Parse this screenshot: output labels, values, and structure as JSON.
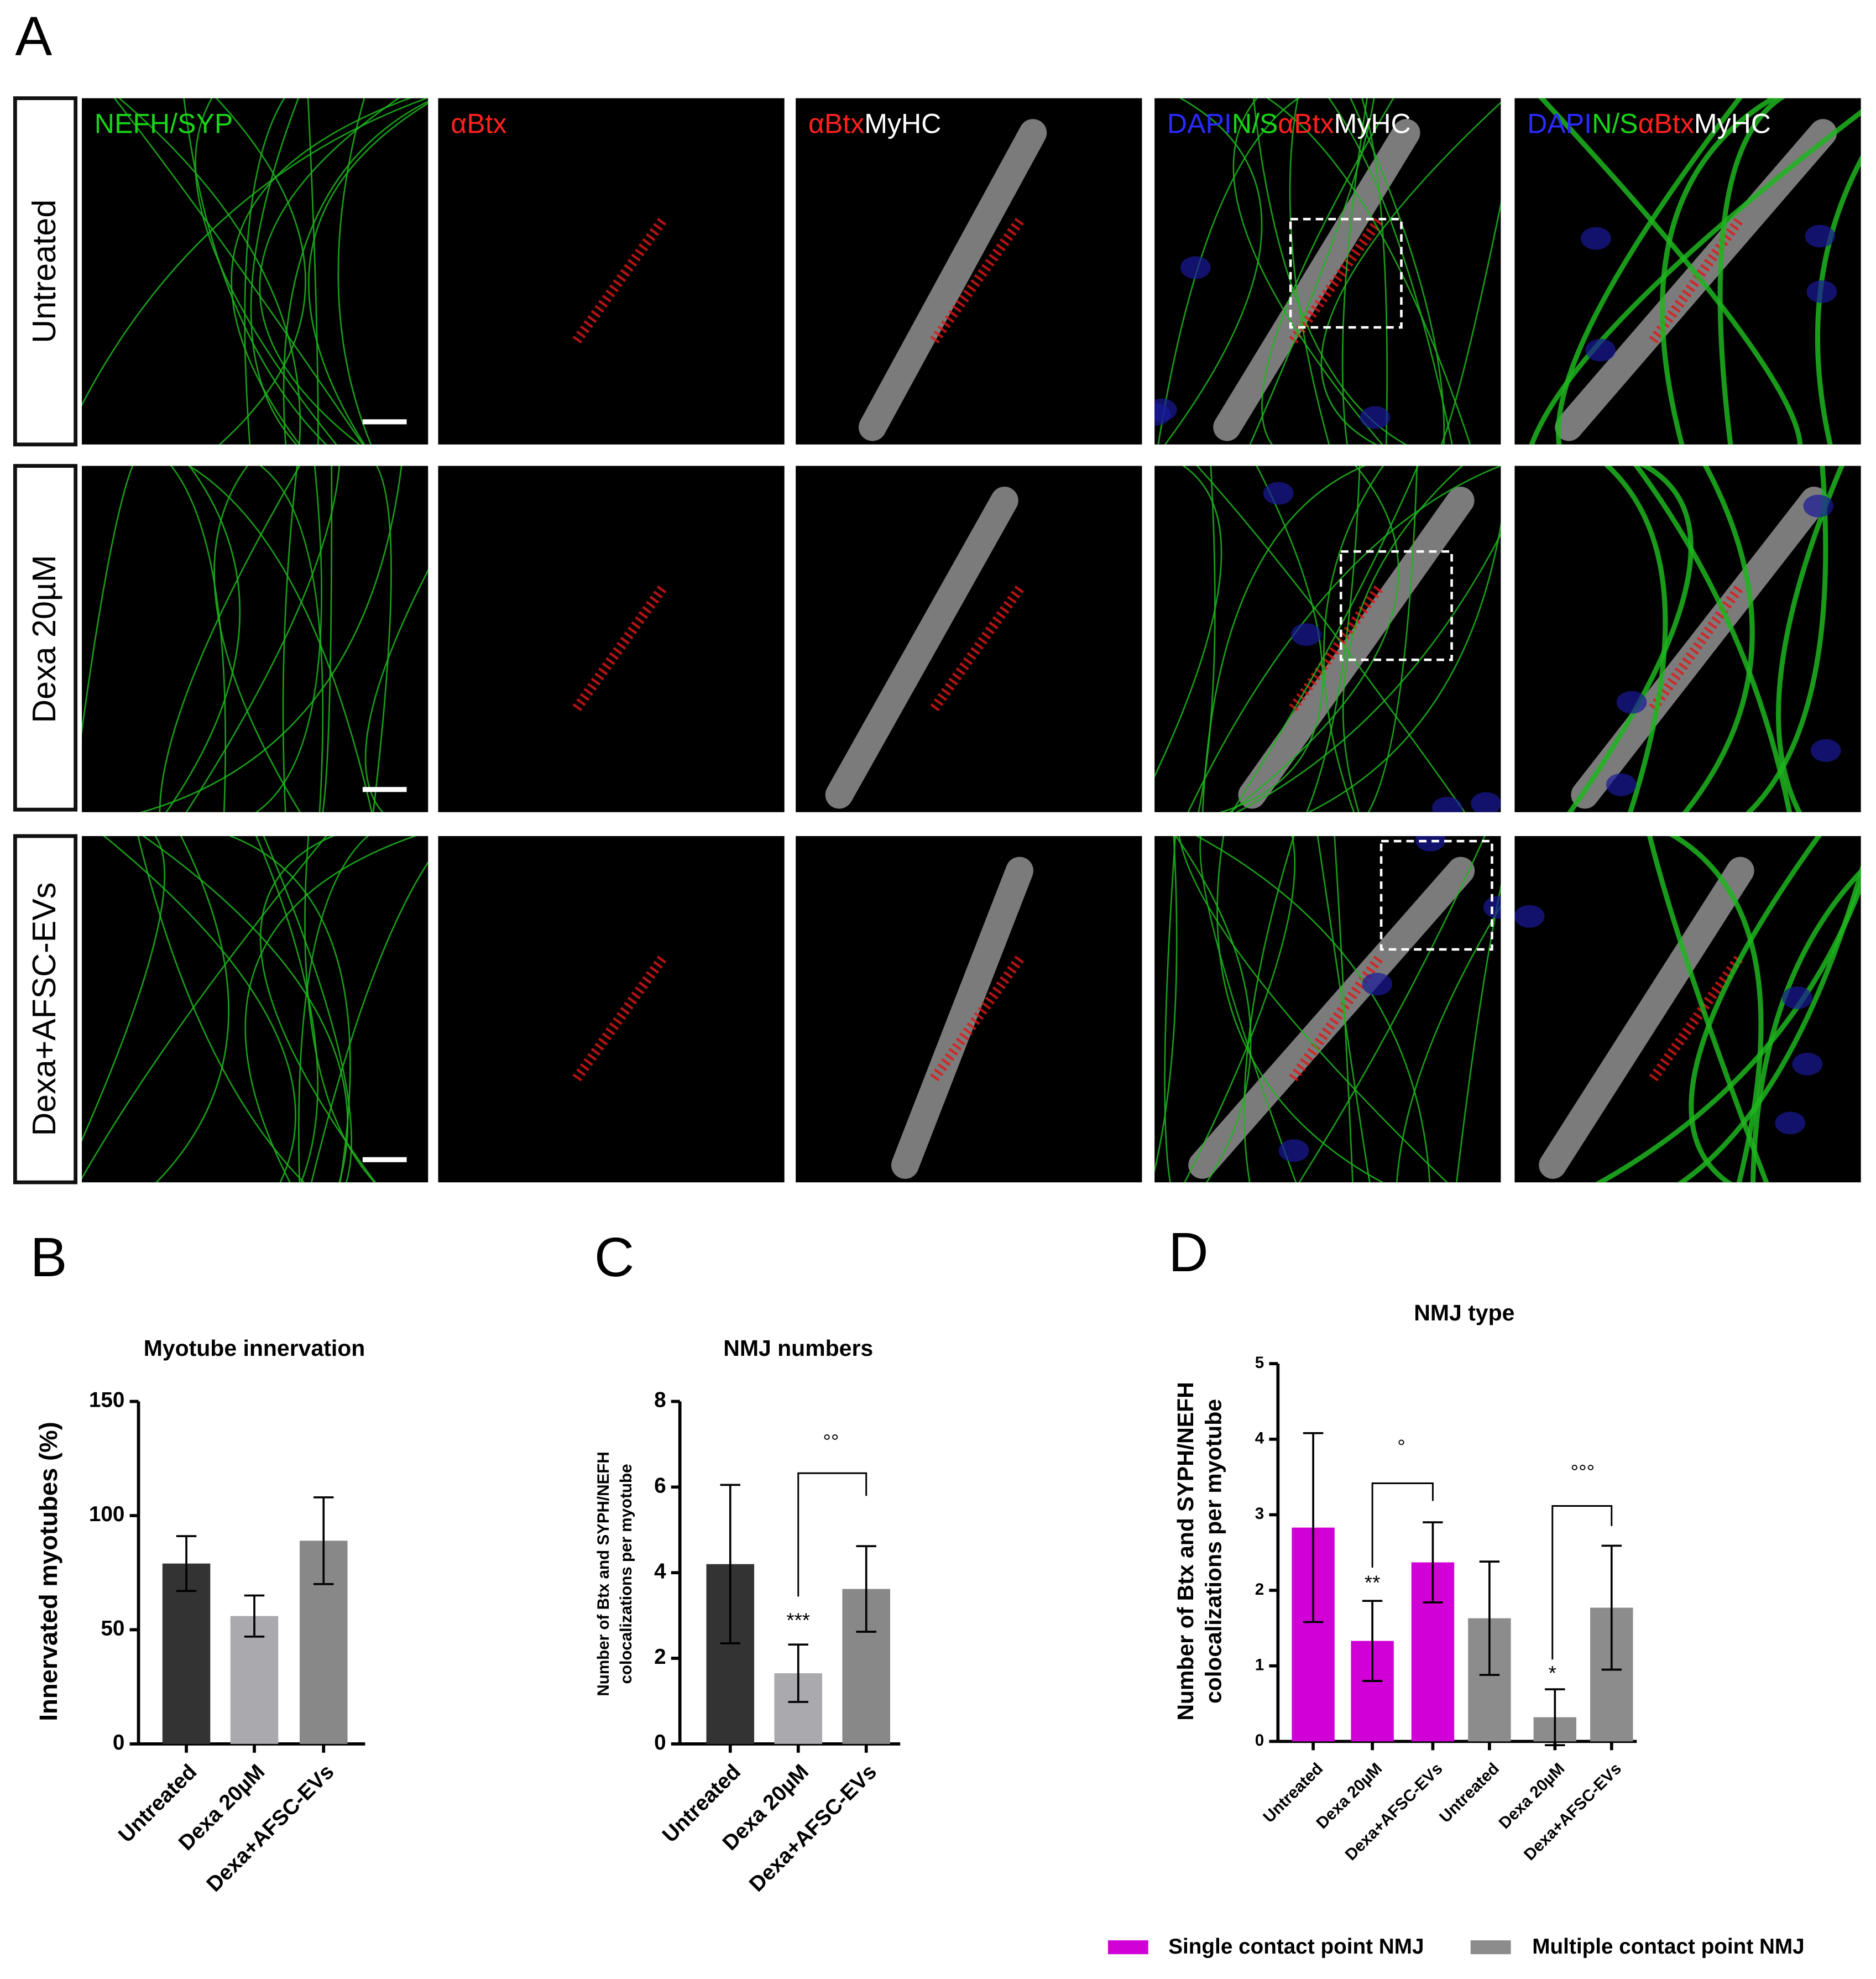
{
  "panel_labels": [
    "A",
    "B",
    "C",
    "D"
  ],
  "panel_a": {
    "row_labels": [
      "Untreated",
      "Dexa 20µM",
      "Dexa+AFSC-EVs"
    ],
    "channel_labels": [
      [
        "NEFH/SYP"
      ],
      [
        "αBtx"
      ],
      [
        "αBtx",
        "MyHC"
      ],
      [
        "DAPI",
        "N/S",
        "αBtx",
        "MyHC"
      ],
      [
        "DAPI",
        "N/S",
        "αBtx",
        "MyHC"
      ]
    ]
  },
  "chart_data": [
    {
      "type": "bar",
      "title": "Myotube innervation",
      "y_label": [
        "Innervated myotubes (%)"
      ],
      "categories": [
        "Untreated",
        "Dexa 20µM",
        "Dexa+AFSC-EVs"
      ],
      "values": [
        79,
        56,
        89
      ],
      "errors": [
        12,
        9,
        19
      ],
      "colors": [
        "#333333",
        "#a9a9ae",
        "#888888"
      ],
      "ylim": [
        0,
        150
      ],
      "yticks": [
        0,
        50,
        100,
        150
      ]
    },
    {
      "type": "bar",
      "title": "NMJ numbers",
      "y_label": [
        "Number of Btx and SYPH/NEFH",
        "colocalizations per myotube"
      ],
      "categories": [
        "Untreated",
        "Dexa 20µM",
        "Dexa+AFSC-EVs"
      ],
      "values": [
        4.2,
        1.65,
        3.62
      ],
      "errors": [
        1.85,
        0.67,
        1.0
      ],
      "colors": [
        "#333333",
        "#a9a9ae",
        "#888888"
      ],
      "ylim": [
        0,
        8
      ],
      "yticks": [
        0,
        2,
        4,
        6,
        8
      ],
      "annotations": [
        "***",
        "°°"
      ]
    },
    {
      "type": "bar",
      "title": "NMJ type",
      "y_label": [
        "Number of Btx and SYPH/NEFH",
        "colocalizations per myotube"
      ],
      "categories": [
        "Untreated",
        "Dexa 20µM",
        "Dexa+AFSC-EVs",
        "Untreated",
        "Dexa 20µM",
        "Dexa+AFSC-EVs"
      ],
      "series": [
        {
          "name": "Single contact point NMJ",
          "color": "#d100d6",
          "values": [
            2.83,
            1.33,
            2.37,
            null,
            null,
            null
          ],
          "errors": [
            1.25,
            0.53,
            0.53,
            null,
            null,
            null
          ]
        },
        {
          "name": "Multiple contact point NMJ",
          "color": "#8c8c8c",
          "values": [
            null,
            null,
            null,
            1.63,
            0.32,
            1.77
          ],
          "errors": [
            null,
            null,
            null,
            0.75,
            0.37,
            0.82
          ]
        }
      ],
      "ylim": [
        0,
        5
      ],
      "yticks": [
        0,
        1,
        2,
        3,
        4,
        5
      ],
      "annotations": [
        "**",
        "°",
        "*",
        "°°°"
      ]
    }
  ]
}
